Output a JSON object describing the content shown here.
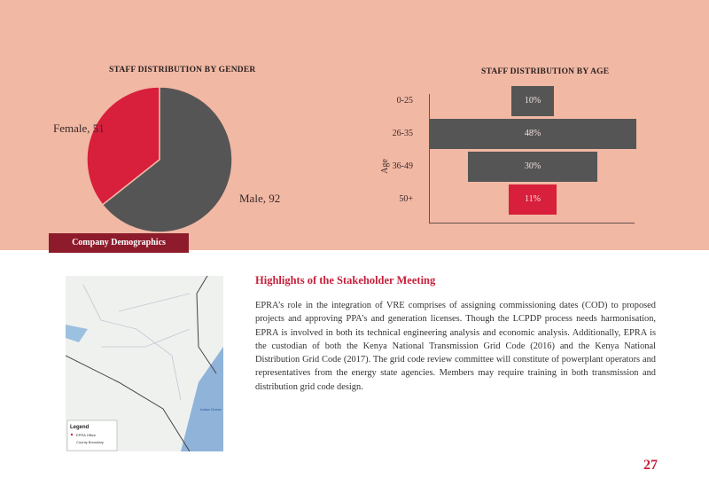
{
  "section_tab": "Company Demographics",
  "chart_data": [
    {
      "type": "pie",
      "title": "STAFF DISTRIBUTION BY GENDER",
      "slices": [
        {
          "label": "Female",
          "value": 51,
          "color": "#d81f3c"
        },
        {
          "label": "Male",
          "value": 92,
          "color": "#555555"
        }
      ],
      "data_labels": [
        "Female, 51",
        "Male, 92"
      ]
    },
    {
      "type": "bar",
      "orientation": "horizontal",
      "title": "STAFF DISTRIBUTION BY AGE",
      "ylabel": "Age",
      "categories": [
        "0-25",
        "26-35",
        "36-49",
        "50+"
      ],
      "values": [
        10,
        48,
        30,
        11
      ],
      "data_labels": [
        "10%",
        "48%",
        "30%",
        "11%"
      ],
      "colors": [
        "#555555",
        "#555555",
        "#555555",
        "#d81f3c"
      ]
    }
  ],
  "article": {
    "heading": "Highlights of the Stakeholder Meeting",
    "body": "EPRA’s role in the integration of VRE comprises of assigning commissioning dates (COD) to proposed projects and approving PPA’s and generation licenses. Though the LCPDP process needs harmonisation, EPRA is involved in both its technical engineering analysis and economic analysis. Additionally, EPRA is the custodian of both the Kenya National Transmission Grid Code (2016) and the Kenya National Distribution Grid Code (2017). The grid code review committee will constitute of powerplant operators and representatives from the energy state agencies. Members may require training in both transmission and distribution grid code design."
  },
  "map": {
    "legend_title": "Legend",
    "legend_items": [
      "EPRA Office",
      "County Boundary"
    ],
    "places": [
      "Indian Ocean"
    ]
  },
  "page_number": "27"
}
